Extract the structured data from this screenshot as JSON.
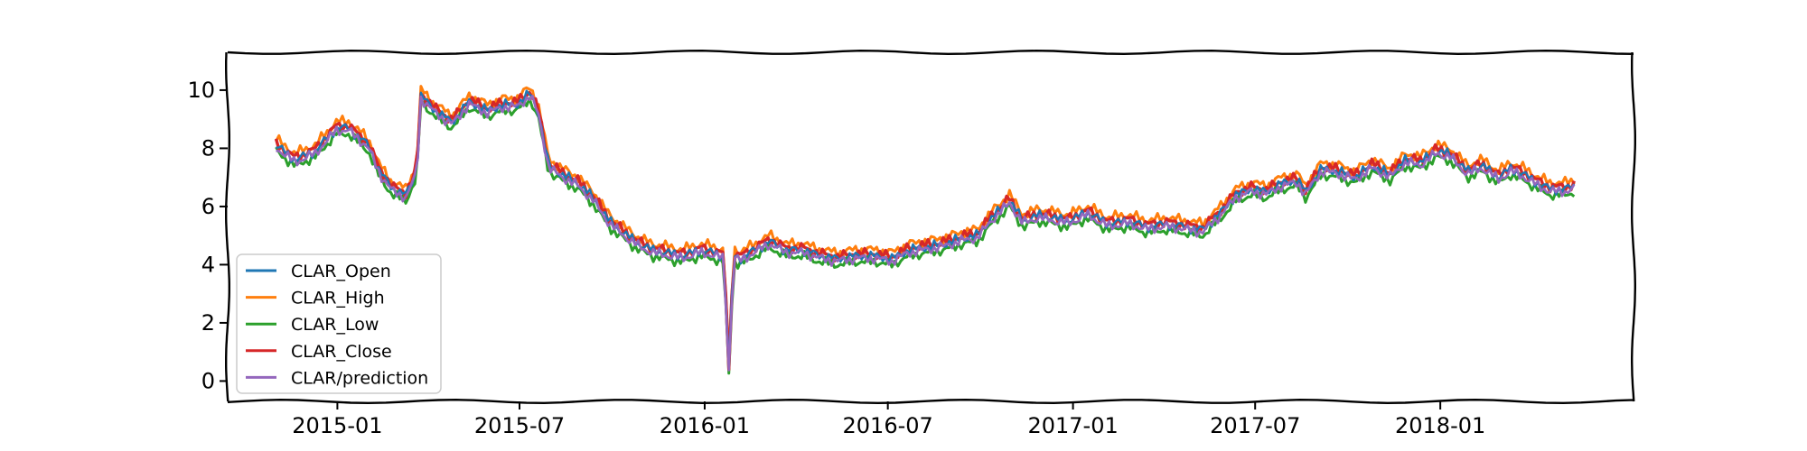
{
  "chart_data": {
    "type": "line",
    "title": "",
    "xlabel": "",
    "ylabel": "",
    "ylim": [
      -0.7,
      11.3
    ],
    "xlim": [
      "2014-09-14",
      "2018-07-12"
    ],
    "grid": false,
    "legend_position": "lower-left",
    "yticks": [
      0,
      2,
      4,
      6,
      8,
      10
    ],
    "xticks": [
      {
        "date": "2015-01-01",
        "label": "2015-01"
      },
      {
        "date": "2015-07-01",
        "label": "2015-07"
      },
      {
        "date": "2016-01-01",
        "label": "2016-01"
      },
      {
        "date": "2016-07-01",
        "label": "2016-07"
      },
      {
        "date": "2017-01-01",
        "label": "2017-01"
      },
      {
        "date": "2017-07-01",
        "label": "2017-07"
      },
      {
        "date": "2018-01-01",
        "label": "2018-01"
      }
    ],
    "base_series": {
      "dates": [
        "2014-11-01",
        "2014-11-20",
        "2014-12-10",
        "2014-12-31",
        "2015-01-12",
        "2015-01-22",
        "2015-02-01",
        "2015-02-12",
        "2015-02-25",
        "2015-03-10",
        "2015-03-21",
        "2015-03-25",
        "2015-04-08",
        "2015-04-25",
        "2015-05-12",
        "2015-05-30",
        "2015-06-15",
        "2015-06-28",
        "2015-07-12",
        "2015-07-20",
        "2015-07-30",
        "2015-08-12",
        "2015-08-28",
        "2015-09-12",
        "2015-09-28",
        "2015-10-12",
        "2015-10-28",
        "2015-11-10",
        "2015-11-25",
        "2015-12-10",
        "2015-12-28",
        "2016-01-10",
        "2016-01-20",
        "2016-01-26",
        "2016-01-29",
        "2016-02-04",
        "2016-02-20",
        "2016-03-05",
        "2016-03-22",
        "2016-04-08",
        "2016-04-25",
        "2016-05-12",
        "2016-05-30",
        "2016-06-18",
        "2016-07-05",
        "2016-07-22",
        "2016-08-08",
        "2016-08-25",
        "2016-09-12",
        "2016-09-28",
        "2016-10-12",
        "2016-10-30",
        "2016-11-12",
        "2016-11-28",
        "2016-12-12",
        "2016-12-28",
        "2017-01-15",
        "2017-02-05",
        "2017-02-25",
        "2017-03-15",
        "2017-04-05",
        "2017-04-22",
        "2017-05-10",
        "2017-05-28",
        "2017-06-12",
        "2017-06-28",
        "2017-07-12",
        "2017-07-28",
        "2017-08-12",
        "2017-08-20",
        "2017-09-05",
        "2017-09-22",
        "2017-10-08",
        "2017-10-25",
        "2017-11-12",
        "2017-11-28",
        "2017-12-12",
        "2017-12-28",
        "2018-01-10",
        "2018-01-28",
        "2018-02-12",
        "2018-02-28",
        "2018-03-12",
        "2018-03-25",
        "2018-04-08",
        "2018-04-20",
        "2018-05-05",
        "2018-05-15"
      ],
      "values": [
        8.1,
        7.6,
        7.9,
        8.7,
        8.7,
        8.4,
        8.1,
        7.2,
        6.6,
        6.4,
        7.2,
        9.8,
        9.3,
        8.9,
        9.6,
        9.3,
        9.5,
        9.5,
        9.9,
        9.2,
        7.4,
        7.1,
        6.8,
        6.3,
        5.5,
        5.1,
        4.7,
        4.5,
        4.4,
        4.3,
        4.5,
        4.4,
        4.3,
        -0.3,
        4.4,
        4.2,
        4.5,
        4.8,
        4.5,
        4.5,
        4.3,
        4.2,
        4.3,
        4.3,
        4.2,
        4.5,
        4.6,
        4.7,
        4.9,
        5.0,
        5.6,
        6.2,
        5.5,
        5.7,
        5.6,
        5.5,
        5.8,
        5.4,
        5.5,
        5.3,
        5.4,
        5.3,
        5.2,
        5.8,
        6.4,
        6.6,
        6.5,
        6.8,
        6.9,
        6.5,
        7.3,
        7.2,
        7.0,
        7.4,
        7.1,
        7.6,
        7.5,
        7.9,
        7.8,
        7.2,
        7.4,
        7.0,
        7.3,
        7.1,
        6.8,
        6.6,
        6.6,
        6.7
      ]
    },
    "series": [
      {
        "name": "CLAR_Open",
        "color": "#1f77b4",
        "offset": 0.0,
        "width": 2.4
      },
      {
        "name": "CLAR_High",
        "color": "#ff7f0e",
        "offset": 0.22,
        "width": 3.0
      },
      {
        "name": "CLAR_Low",
        "color": "#2ca02c",
        "offset": -0.2,
        "width": 3.0
      },
      {
        "name": "CLAR_Close",
        "color": "#d62728",
        "offset": 0.08,
        "width": 3.4
      },
      {
        "name": "CLAR/prediction",
        "color": "#9467bd",
        "offset": -0.08,
        "width": 2.6
      }
    ]
  }
}
